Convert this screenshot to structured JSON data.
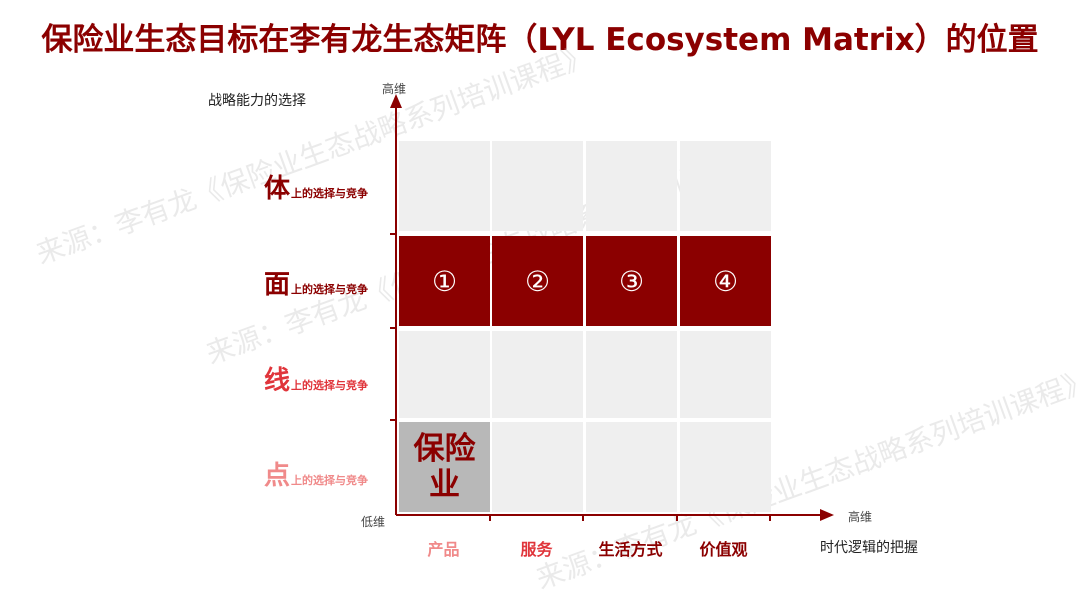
{
  "title": "保险业生态目标在李有龙生态矩阵（LYL Ecosystem Matrix）的位置",
  "watermark": "来源：李有龙《保险业生态战略系列培训课程》",
  "y_axis": {
    "caption": "战略能力的选择",
    "high": "高维",
    "low": "低维"
  },
  "x_axis": {
    "caption": "时代逻辑的把握",
    "high": "高维"
  },
  "rows": [
    {
      "big": "体",
      "small": "上的选择与竞争",
      "color": "#8b0000"
    },
    {
      "big": "面",
      "small": "上的选择与竞争",
      "color": "#8b0000"
    },
    {
      "big": "线",
      "small": "上的选择与竞争",
      "color": "#e0353b"
    },
    {
      "big": "点",
      "small": "上的选择与竞争",
      "color": "#f08a8a"
    }
  ],
  "columns": [
    {
      "label": "产品",
      "color": "#f08a8a"
    },
    {
      "label": "服务",
      "color": "#e0353b"
    },
    {
      "label": "生活方式",
      "color": "#8b0000"
    },
    {
      "label": "价值观",
      "color": "#8b0000"
    }
  ],
  "highlight_cells": [
    "①",
    "②",
    "③",
    "④"
  ],
  "insurance_cell": {
    "line1": "保险",
    "line2": "业"
  },
  "colors": {
    "dark_red": "#8b0000",
    "grid_bg": "#efefef",
    "insurance_bg": "#b8b8b8"
  }
}
